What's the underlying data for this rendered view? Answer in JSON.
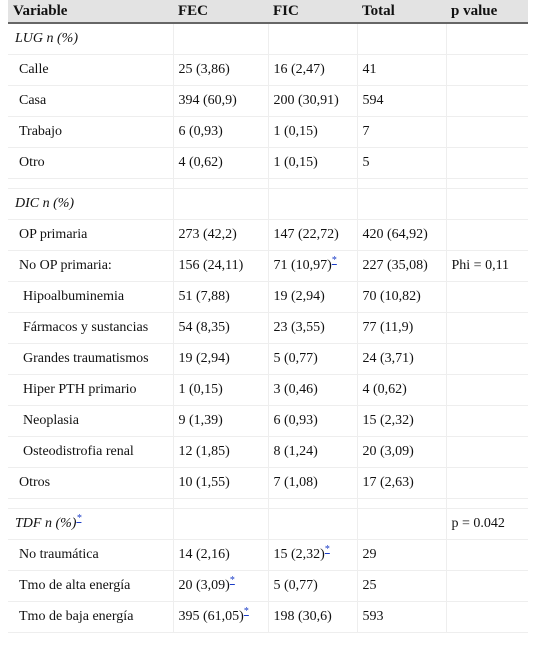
{
  "headers": [
    "Variable",
    "FEC",
    "FIC",
    "Total",
    "p value"
  ],
  "footnote_marker": "*",
  "sections": {
    "lug": {
      "title": "LUG n (%)",
      "rows": [
        [
          "Calle",
          "25 (3,86)",
          "16 (2,47)",
          "41",
          ""
        ],
        [
          "Casa",
          "394 (60,9)",
          "200 (30,91)",
          "594",
          ""
        ],
        [
          "Trabajo",
          "6 (0,93)",
          "1 (0,15)",
          "7",
          ""
        ],
        [
          "Otro",
          "4 (0,62)",
          "1 (0,15)",
          "5",
          ""
        ]
      ]
    },
    "dic": {
      "title": "DIC n (%)",
      "op_primaria": [
        "OP primaria",
        "273 (42,2)",
        "147 (22,72)",
        "420 (64,92)",
        ""
      ],
      "no_op": [
        "No OP primaria:",
        "156 (24,11)",
        "71 (10,97)",
        "227 (35,08)",
        "Phi = 0,11"
      ],
      "subrows": [
        [
          "Hipoalbuminemia",
          "51 (7,88)",
          "19 (2,94)",
          "70 (10,82)",
          ""
        ],
        [
          "Fármacos y sustancias",
          "54 (8,35)",
          "23 (3,55)",
          "77 (11,9)",
          ""
        ],
        [
          "Grandes traumatismos",
          "19 (2,94)",
          "5 (0,77)",
          "24 (3,71)",
          ""
        ],
        [
          "Hiper PTH primario",
          "1 (0,15)",
          "3 (0,46)",
          "4 (0,62)",
          ""
        ],
        [
          "Neoplasia",
          "9 (1,39)",
          "6 (0,93)",
          "15 (2,32)",
          ""
        ],
        [
          "Osteodistrofia renal",
          "12 (1,85)",
          "8 (1,24)",
          "20 (3,09)",
          ""
        ]
      ],
      "otros": [
        "Otros",
        "10 (1,55)",
        "7 (1,08)",
        "17 (2,63)",
        ""
      ]
    },
    "tdf": {
      "title": "TDF n (%)",
      "p_value": "p = 0.042",
      "rows": [
        [
          "No traumática",
          "14 (2,16)",
          "15 (2,32)",
          "29",
          ""
        ],
        [
          "Tmo de alta energía",
          "20 (3,09)",
          "5 (0,77)",
          "25",
          ""
        ],
        [
          "Tmo de baja energía",
          "395 (61,05)",
          "198 (30,6)",
          "593",
          ""
        ]
      ]
    }
  }
}
